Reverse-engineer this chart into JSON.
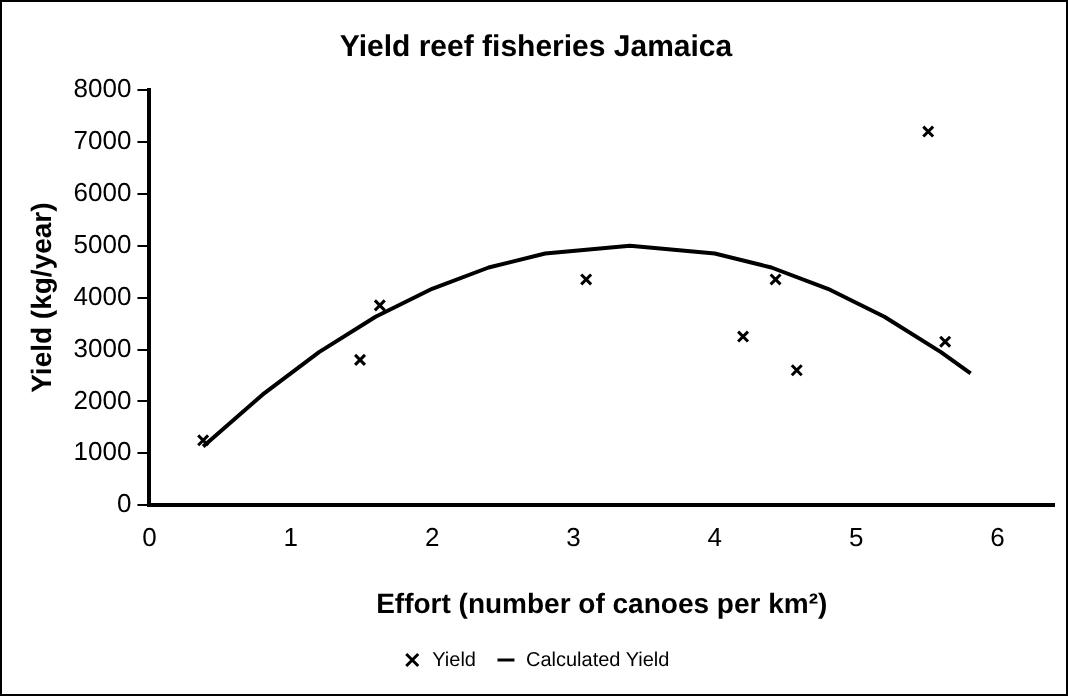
{
  "chart_data": {
    "type": "scatter",
    "title": "Yield reef fisheries Jamaica",
    "xlabel": "Effort (number of canoes per km²)",
    "ylabel": "Yield (kg/year)",
    "xlim": [
      0,
      6.4
    ],
    "xticks": [
      0,
      1,
      2,
      3,
      4,
      5,
      6
    ],
    "ylim": [
      0,
      8000
    ],
    "yticks": [
      0,
      1000,
      2000,
      3000,
      4000,
      5000,
      6000,
      7000,
      8000
    ],
    "grid": false,
    "legend": "bottom",
    "series": [
      {
        "name": "Yield",
        "type": "scatter",
        "marker": "cross",
        "color": "#000000",
        "x": [
          0.38,
          1.49,
          1.63,
          3.09,
          4.2,
          4.43,
          4.58,
          5.51,
          5.63
        ],
        "values": [
          1250,
          2800,
          3850,
          4350,
          3250,
          4350,
          2600,
          7200,
          3150
        ]
      },
      {
        "name": "Calculated Yield",
        "type": "line",
        "marker": "none",
        "line_style": "solid",
        "color": "#000000",
        "x": [
          0.38,
          0.8,
          1.2,
          1.6,
          2.0,
          2.4,
          2.8,
          3.4,
          4.0,
          4.4,
          4.8,
          5.2,
          5.6,
          5.81
        ],
        "values": [
          1130,
          2130,
          2950,
          3630,
          4170,
          4580,
          4850,
          5000,
          4850,
          4580,
          4170,
          3630,
          2950,
          2540
        ]
      }
    ]
  }
}
